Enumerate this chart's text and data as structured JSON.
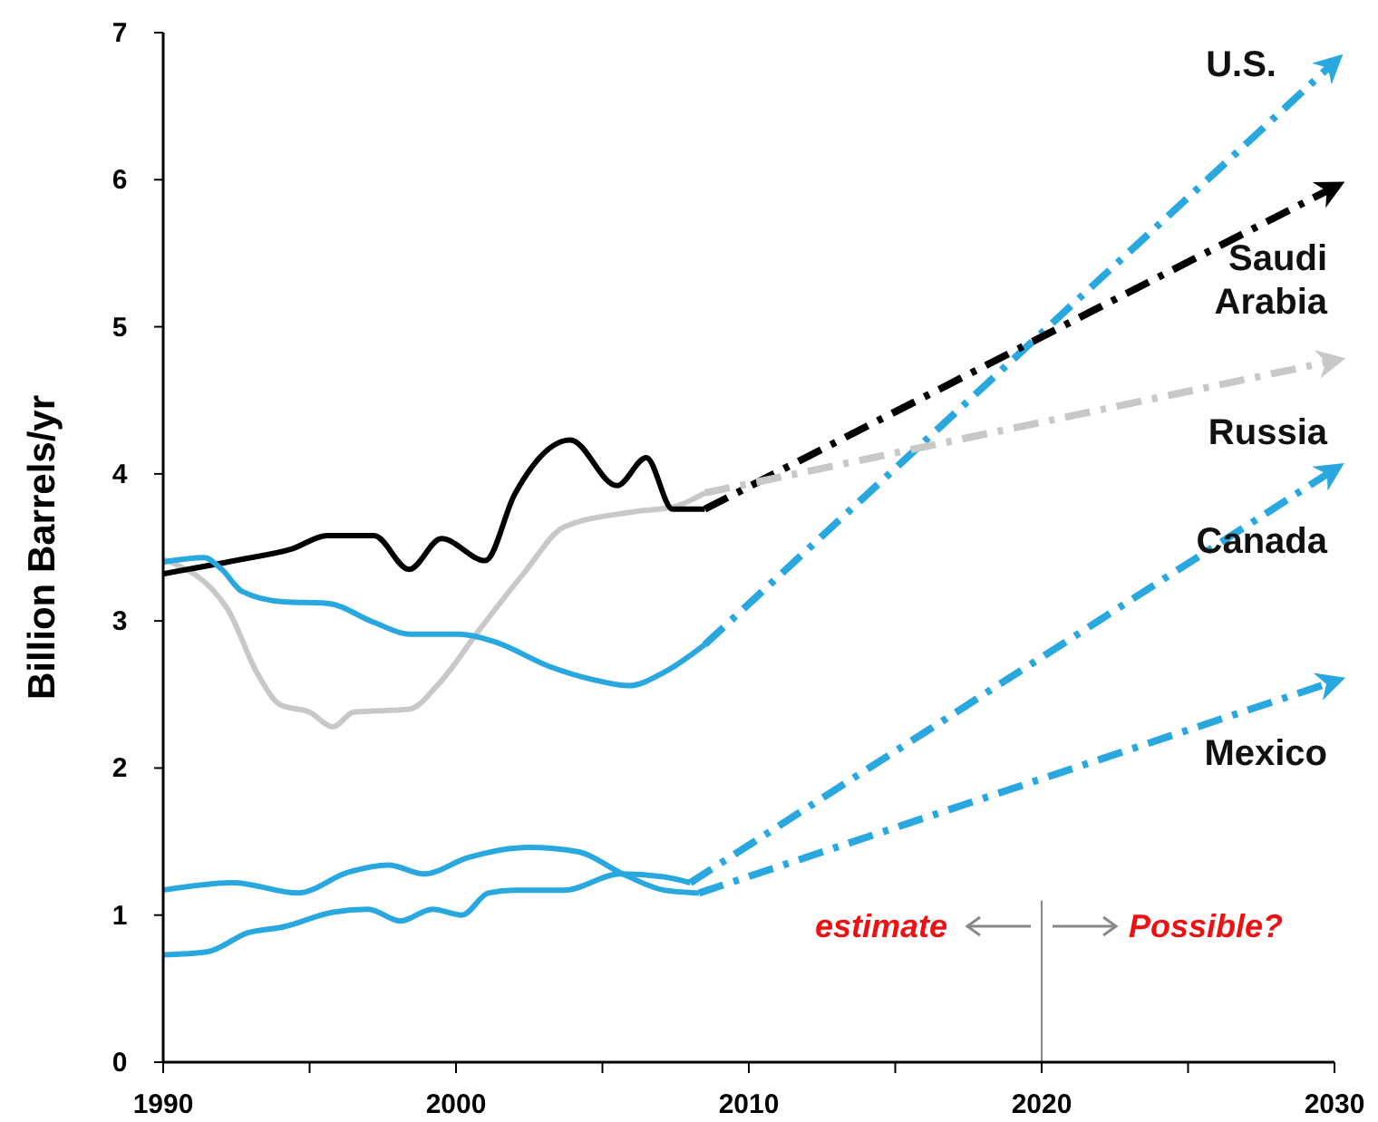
{
  "chart_data": {
    "type": "line",
    "ylabel": "Billion Barrels/yr",
    "xlim": [
      1990,
      2030
    ],
    "ylim": [
      0,
      7
    ],
    "xticks": [
      1990,
      {
        "value": 1995,
        "label": null
      },
      2000,
      {
        "value": 2005,
        "label": null
      },
      2010,
      {
        "value": 2015,
        "label": null
      },
      2020,
      {
        "value": 2025,
        "label": null
      },
      2030
    ],
    "yticks": [
      0,
      1,
      2,
      3,
      4,
      5,
      6,
      7
    ],
    "grid": false,
    "marker": "none",
    "series": [
      {
        "color": "#c8c8c8",
        "line_style": "solid",
        "x": [
          1990,
          1992.2,
          1993.2,
          1994,
          1995,
          1995.8,
          1996.5,
          1998.4,
          1999.4,
          2000.8,
          2002.3,
          2003.7,
          2006,
          2007.5,
          2008.5
        ],
        "values": [
          3.42,
          3.08,
          2.65,
          2.43,
          2.38,
          2.28,
          2.38,
          2.4,
          2.57,
          2.94,
          3.32,
          3.64,
          3.74,
          3.78,
          3.87
        ]
      },
      {
        "color": "#000000",
        "line_style": "solid",
        "x": [
          1990,
          1992.7,
          1994.4,
          1995.6,
          1997.2,
          1998.4,
          1999.5,
          2001,
          2002,
          2003.9,
          2005.5,
          2006.5,
          2007.4,
          2008.5
        ],
        "values": [
          3.32,
          3.42,
          3.49,
          3.58,
          3.58,
          3.35,
          3.56,
          3.41,
          3.86,
          4.23,
          3.92,
          4.11,
          3.76,
          3.76
        ]
      },
      {
        "color": "#29a8e0",
        "line_style": "solid",
        "x": [
          1990,
          1991.4,
          1992,
          1992.7,
          1994.1,
          1995.6,
          1997.2,
          1998.4,
          2000.1,
          2001.3,
          2003.2,
          2004.7,
          2005.9,
          2007.1,
          2008.5
        ],
        "values": [
          3.4,
          3.43,
          3.35,
          3.2,
          3.13,
          3.12,
          2.99,
          2.91,
          2.91,
          2.86,
          2.69,
          2.6,
          2.56,
          2.65,
          2.84
        ]
      },
      {
        "color": "#29a8e0",
        "line_style": "solid",
        "x": [
          1990,
          1992.4,
          1994.6,
          1996.3,
          1997.7,
          1998.9,
          2000.4,
          2002.5,
          2004.2,
          2005.6,
          2007.1,
          2008.3
        ],
        "values": [
          1.17,
          1.22,
          1.15,
          1.29,
          1.34,
          1.28,
          1.39,
          1.46,
          1.43,
          1.29,
          1.17,
          1.15
        ]
      },
      {
        "color": "#29a8e0",
        "line_style": "solid",
        "x": [
          1990,
          1991.5,
          1992.9,
          1994.1,
          1995.8,
          1997,
          1998.1,
          1999.2,
          2000.2,
          2001.1,
          2002,
          2003.7,
          2005.6,
          2007.1,
          2008
        ],
        "values": [
          0.73,
          0.75,
          0.88,
          0.92,
          1.02,
          1.04,
          0.96,
          1.04,
          1.0,
          1.15,
          1.17,
          1.17,
          1.28,
          1.26,
          1.22
        ]
      },
      {
        "name": "U.S.",
        "color": "#29a8e0",
        "line_style": "dashed",
        "x": [
          2008.5,
          2030
        ],
        "values": [
          2.84,
          6.8
        ]
      },
      {
        "name": "Saudi Arabia",
        "color": "#000000",
        "line_style": "dashed",
        "x": [
          2008.5,
          2030
        ],
        "values": [
          3.76,
          5.95
        ]
      },
      {
        "name": "Russia",
        "color": "#c8c8c8",
        "line_style": "dashed",
        "x": [
          2008.5,
          2030
        ],
        "values": [
          3.87,
          4.77
        ]
      },
      {
        "name": "Canada",
        "color": "#29a8e0",
        "line_style": "dashed",
        "x": [
          2008,
          2030
        ],
        "values": [
          1.22,
          4.03
        ]
      },
      {
        "name": "Mexico",
        "color": "#29a8e0",
        "line_style": "dashed",
        "x": [
          2008.3,
          2030
        ],
        "values": [
          1.15,
          2.59
        ]
      }
    ],
    "ref_lines": [
      {
        "axis": "x",
        "value": 2020,
        "color": "#888888"
      }
    ],
    "annotations": [
      "estimate",
      "Possible?"
    ]
  }
}
